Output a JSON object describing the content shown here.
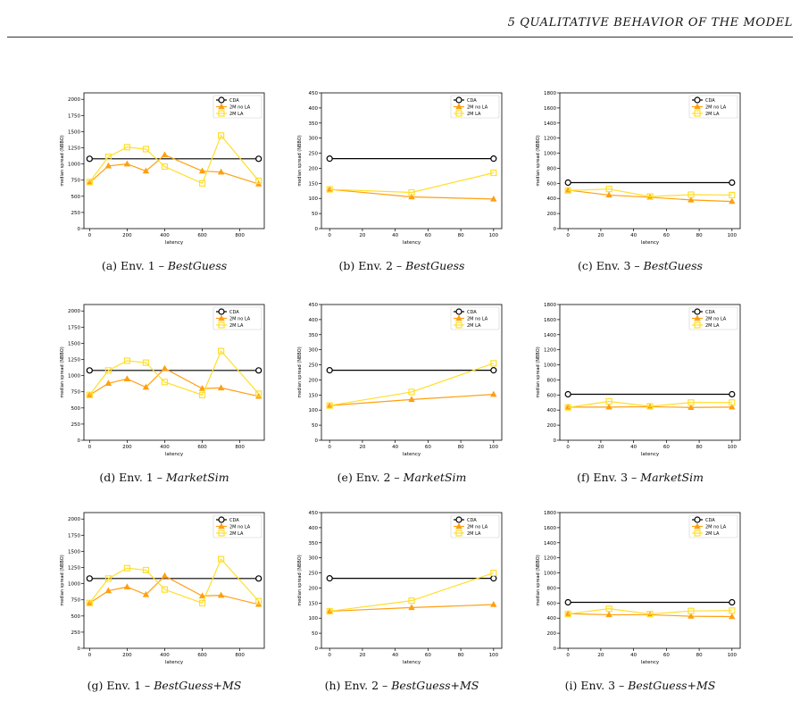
{
  "page": {
    "header": "5 QUALITATIVE BEHAVIOR OF THE MODEL",
    "colors": {
      "cda": "#000000",
      "two_m_no_la": "#ff9f0f",
      "two_m_la": "#ffdf2a"
    }
  },
  "chart_data": [
    {
      "id": "a",
      "type": "line",
      "caption_prefix": "(a) Env. 1 –",
      "caption_strategy": "BestGuess",
      "xlabel": "latency",
      "ylabel": "median spread (NBBO)",
      "xlim": [
        -30,
        930
      ],
      "ylim": [
        0,
        2100
      ],
      "xticks": [
        0,
        200,
        400,
        600,
        800
      ],
      "yticks": [
        0,
        250,
        500,
        750,
        1000,
        1250,
        1500,
        1750,
        2000
      ],
      "legend": "top-right",
      "grid": false,
      "series": [
        {
          "name": "CDA",
          "marker": "circle",
          "x": [
            0,
            900
          ],
          "y": [
            1080,
            1080
          ]
        },
        {
          "name": "2M no LA",
          "marker": "triangle",
          "x": [
            0,
            100,
            200,
            300,
            400,
            600,
            700,
            900
          ],
          "y": [
            710,
            970,
            1000,
            890,
            1140,
            890,
            875,
            690
          ]
        },
        {
          "name": "2M LA",
          "marker": "square",
          "x": [
            0,
            100,
            200,
            300,
            400,
            600,
            700,
            900
          ],
          "y": [
            720,
            1110,
            1260,
            1230,
            960,
            700,
            1440,
            740
          ]
        }
      ]
    },
    {
      "id": "b",
      "type": "line",
      "caption_prefix": "(b) Env. 2 –",
      "caption_strategy": "BestGuess",
      "xlabel": "latency",
      "ylabel": "median spread (NBBO)",
      "xlim": [
        -5,
        105
      ],
      "ylim": [
        0,
        450
      ],
      "xticks": [
        0,
        20,
        40,
        60,
        80,
        100
      ],
      "yticks": [
        0,
        50,
        100,
        150,
        200,
        250,
        300,
        350,
        400,
        450
      ],
      "legend": "top-right",
      "grid": false,
      "series": [
        {
          "name": "CDA",
          "marker": "circle",
          "x": [
            0,
            100
          ],
          "y": [
            232,
            232
          ]
        },
        {
          "name": "2M no LA",
          "marker": "triangle",
          "x": [
            0,
            50,
            100
          ],
          "y": [
            130,
            105,
            98
          ]
        },
        {
          "name": "2M LA",
          "marker": "square",
          "x": [
            0,
            50,
            100
          ],
          "y": [
            130,
            120,
            185
          ]
        }
      ]
    },
    {
      "id": "c",
      "type": "line",
      "caption_prefix": "(c) Env. 3 –",
      "caption_strategy": "BestGuess",
      "xlabel": "latency",
      "ylabel": "median spread (NBBO)",
      "xlim": [
        -5,
        105
      ],
      "ylim": [
        0,
        1800
      ],
      "xticks": [
        0,
        20,
        40,
        60,
        80,
        100
      ],
      "yticks": [
        0,
        200,
        400,
        600,
        800,
        1000,
        1200,
        1400,
        1600,
        1800
      ],
      "legend": "top-right",
      "grid": false,
      "series": [
        {
          "name": "CDA",
          "marker": "circle",
          "x": [
            0,
            100
          ],
          "y": [
            610,
            610
          ]
        },
        {
          "name": "2M no LA",
          "marker": "triangle",
          "x": [
            0,
            25,
            50,
            75,
            100
          ],
          "y": [
            510,
            445,
            415,
            380,
            360
          ]
        },
        {
          "name": "2M LA",
          "marker": "square",
          "x": [
            0,
            25,
            50,
            75,
            100
          ],
          "y": [
            505,
            525,
            425,
            450,
            445
          ]
        }
      ]
    },
    {
      "id": "d",
      "type": "line",
      "caption_prefix": "(d) Env. 1 –",
      "caption_strategy": "MarketSim",
      "xlabel": "latency",
      "ylabel": "median spread (NBBO)",
      "xlim": [
        -30,
        930
      ],
      "ylim": [
        0,
        2100
      ],
      "xticks": [
        0,
        200,
        400,
        600,
        800
      ],
      "yticks": [
        0,
        250,
        500,
        750,
        1000,
        1250,
        1500,
        1750,
        2000
      ],
      "legend": "top-right",
      "grid": false,
      "series": [
        {
          "name": "CDA",
          "marker": "circle",
          "x": [
            0,
            900
          ],
          "y": [
            1080,
            1080
          ]
        },
        {
          "name": "2M no LA",
          "marker": "triangle",
          "x": [
            0,
            100,
            200,
            300,
            400,
            600,
            700,
            900
          ],
          "y": [
            700,
            880,
            950,
            820,
            1110,
            800,
            810,
            680
          ]
        },
        {
          "name": "2M LA",
          "marker": "square",
          "x": [
            0,
            100,
            200,
            300,
            400,
            600,
            700,
            900
          ],
          "y": [
            700,
            1080,
            1230,
            1200,
            900,
            700,
            1380,
            720
          ]
        }
      ]
    },
    {
      "id": "e",
      "type": "line",
      "caption_prefix": "(e) Env. 2 –",
      "caption_strategy": "MarketSim",
      "xlabel": "latency",
      "ylabel": "median spread (NBBO)",
      "xlim": [
        -5,
        105
      ],
      "ylim": [
        0,
        450
      ],
      "xticks": [
        0,
        20,
        40,
        60,
        80,
        100
      ],
      "yticks": [
        0,
        50,
        100,
        150,
        200,
        250,
        300,
        350,
        400,
        450
      ],
      "legend": "top-right",
      "grid": false,
      "series": [
        {
          "name": "CDA",
          "marker": "circle",
          "x": [
            0,
            100
          ],
          "y": [
            232,
            232
          ]
        },
        {
          "name": "2M no LA",
          "marker": "triangle",
          "x": [
            0,
            50,
            100
          ],
          "y": [
            115,
            135,
            152
          ]
        },
        {
          "name": "2M LA",
          "marker": "square",
          "x": [
            0,
            50,
            100
          ],
          "y": [
            115,
            160,
            255
          ]
        }
      ]
    },
    {
      "id": "f",
      "type": "line",
      "caption_prefix": "(f) Env. 3 –",
      "caption_strategy": "MarketSim",
      "xlabel": "latency",
      "ylabel": "median spread (NBBO)",
      "xlim": [
        -5,
        105
      ],
      "ylim": [
        0,
        1800
      ],
      "xticks": [
        0,
        20,
        40,
        60,
        80,
        100
      ],
      "yticks": [
        0,
        200,
        400,
        600,
        800,
        1000,
        1200,
        1400,
        1600,
        1800
      ],
      "legend": "top-right",
      "grid": false,
      "series": [
        {
          "name": "CDA",
          "marker": "circle",
          "x": [
            0,
            100
          ],
          "y": [
            610,
            610
          ]
        },
        {
          "name": "2M no LA",
          "marker": "triangle",
          "x": [
            0,
            25,
            50,
            75,
            100
          ],
          "y": [
            440,
            440,
            445,
            435,
            440
          ]
        },
        {
          "name": "2M LA",
          "marker": "square",
          "x": [
            0,
            25,
            50,
            75,
            100
          ],
          "y": [
            435,
            515,
            450,
            500,
            500
          ]
        }
      ]
    },
    {
      "id": "g",
      "type": "line",
      "caption_prefix": "(g) Env. 1 –",
      "caption_strategy": "BestGuess+MS",
      "xlabel": "latency",
      "ylabel": "median spread (NBBO)",
      "xlim": [
        -30,
        930
      ],
      "ylim": [
        0,
        2100
      ],
      "xticks": [
        0,
        200,
        400,
        600,
        800
      ],
      "yticks": [
        0,
        250,
        500,
        750,
        1000,
        1250,
        1500,
        1750,
        2000
      ],
      "legend": "top-right",
      "grid": false,
      "series": [
        {
          "name": "CDA",
          "marker": "circle",
          "x": [
            0,
            900
          ],
          "y": [
            1080,
            1080
          ]
        },
        {
          "name": "2M no LA",
          "marker": "triangle",
          "x": [
            0,
            100,
            200,
            300,
            400,
            600,
            700,
            900
          ],
          "y": [
            700,
            890,
            950,
            830,
            1120,
            810,
            820,
            680
          ]
        },
        {
          "name": "2M LA",
          "marker": "square",
          "x": [
            0,
            100,
            200,
            300,
            400,
            600,
            700,
            900
          ],
          "y": [
            700,
            1080,
            1240,
            1210,
            910,
            700,
            1380,
            730
          ]
        }
      ]
    },
    {
      "id": "h",
      "type": "line",
      "caption_prefix": "(h) Env. 2 –",
      "caption_strategy": "BestGuess+MS",
      "xlabel": "latency",
      "ylabel": "median spread (NBBO)",
      "xlim": [
        -5,
        105
      ],
      "ylim": [
        0,
        450
      ],
      "xticks": [
        0,
        20,
        40,
        60,
        80,
        100
      ],
      "yticks": [
        0,
        50,
        100,
        150,
        200,
        250,
        300,
        350,
        400,
        450
      ],
      "legend": "top-right",
      "grid": false,
      "series": [
        {
          "name": "CDA",
          "marker": "circle",
          "x": [
            0,
            100
          ],
          "y": [
            232,
            232
          ]
        },
        {
          "name": "2M no LA",
          "marker": "triangle",
          "x": [
            0,
            50,
            100
          ],
          "y": [
            123,
            135,
            145
          ]
        },
        {
          "name": "2M LA",
          "marker": "square",
          "x": [
            0,
            50,
            100
          ],
          "y": [
            123,
            158,
            250
          ]
        }
      ]
    },
    {
      "id": "i",
      "type": "line",
      "caption_prefix": "(i) Env. 3 –",
      "caption_strategy": "BestGuess+MS",
      "xlabel": "latency",
      "ylabel": "median spread (NBBO)",
      "xlim": [
        -5,
        105
      ],
      "ylim": [
        0,
        1800
      ],
      "xticks": [
        0,
        20,
        40,
        60,
        80,
        100
      ],
      "yticks": [
        0,
        200,
        400,
        600,
        800,
        1000,
        1200,
        1400,
        1600,
        1800
      ],
      "legend": "top-right",
      "grid": false,
      "series": [
        {
          "name": "CDA",
          "marker": "circle",
          "x": [
            0,
            100
          ],
          "y": [
            610,
            610
          ]
        },
        {
          "name": "2M no LA",
          "marker": "triangle",
          "x": [
            0,
            25,
            50,
            75,
            100
          ],
          "y": [
            460,
            445,
            445,
            425,
            420
          ]
        },
        {
          "name": "2M LA",
          "marker": "square",
          "x": [
            0,
            25,
            50,
            75,
            100
          ],
          "y": [
            455,
            525,
            455,
            495,
            500
          ]
        }
      ]
    }
  ]
}
